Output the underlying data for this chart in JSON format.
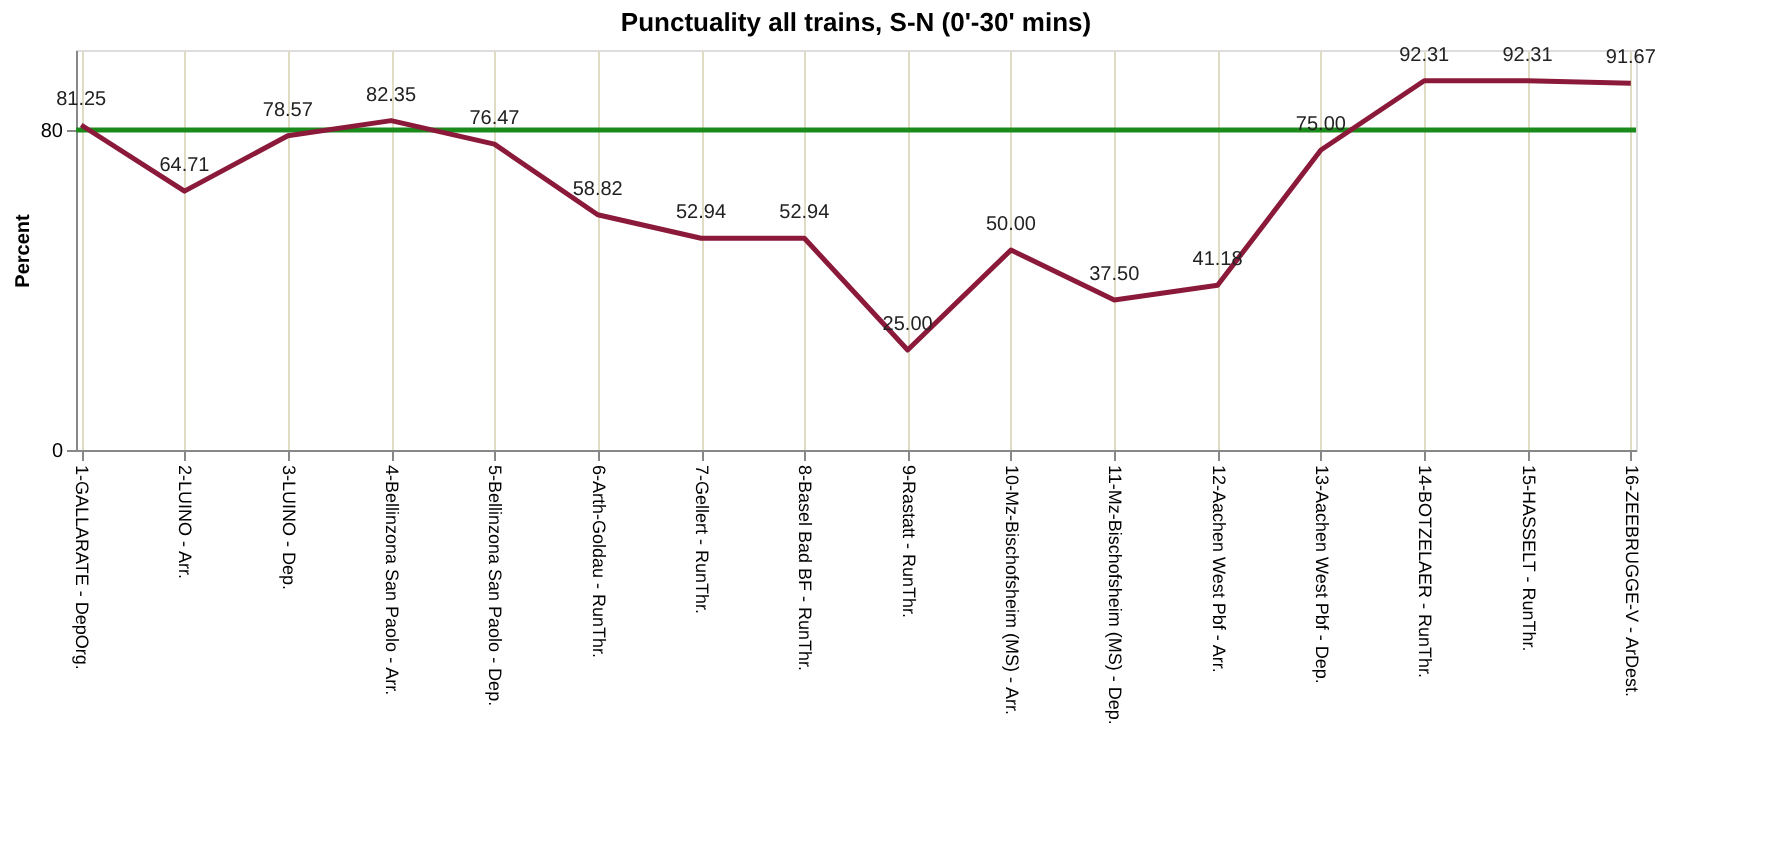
{
  "chart_data": {
    "type": "line",
    "title": "Punctuality all trains, S-N (0'-30' mins)",
    "ylabel": "Percent",
    "categories": [
      "1-GALLARATE - DepOrg.",
      "2-LUINO - Arr.",
      "3-LUINO - Dep.",
      "4-Bellinzona San Paolo - Arr.",
      "5-Bellinzona San Paolo - Dep.",
      "6-Arth-Goldau - RunThr.",
      "7-Gellert - RunThr.",
      "8-Basel Bad BF - RunThr.",
      "9-Rastatt - RunThr.",
      "10-Mz-Bischofsheim (MS) - Arr.",
      "11-Mz-Bischofsheim (MS) - Dep.",
      "12-Aachen West Pbf - Arr.",
      "13-Aachen West Pbf - Dep.",
      "14-BOTZELAER - RunThr.",
      "15-HASSELT - RunThr.",
      "16-ZEEBRUGGE-V - ArDest."
    ],
    "series": [
      {
        "color": "#8b1a3a",
        "values": [
          81.25,
          64.71,
          78.57,
          82.35,
          76.47,
          58.82,
          52.94,
          52.94,
          25.0,
          50.0,
          37.5,
          41.18,
          75.0,
          92.31,
          92.31,
          91.67
        ],
        "value_labels": [
          "81.25",
          "64.71",
          "78.57",
          "82.35",
          "76.47",
          "58.82",
          "52.94",
          "52.94",
          "25.00",
          "50.00",
          "37.50",
          "41.18",
          "75.00",
          "92.31",
          "92.31",
          "91.67"
        ]
      }
    ],
    "ylim": [
      0,
      100
    ],
    "yticks": [
      0,
      80
    ],
    "grid": "x",
    "marker": "none",
    "line_style": "solid",
    "ref_lines": [
      {
        "axis": "y",
        "value": 80,
        "color": "#1a8a1a"
      }
    ]
  }
}
